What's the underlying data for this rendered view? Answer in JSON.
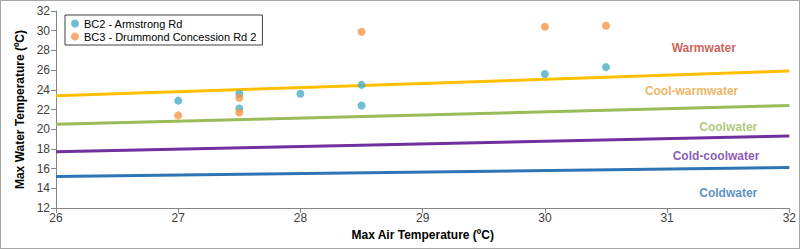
{
  "chart_data": {
    "type": "scatter",
    "x_label": "Max Air Temperature (ºC)",
    "y_label": "Max Water Temperature (ºC)",
    "xlim": [
      26,
      32
    ],
    "xticks": [
      26,
      27,
      28,
      29,
      30,
      31,
      32
    ],
    "ylim": [
      12,
      32
    ],
    "yticks": [
      12,
      14,
      16,
      18,
      20,
      22,
      24,
      26,
      28,
      30,
      32
    ],
    "grid": false,
    "legend": "upper left",
    "series": [
      {
        "name": "BC2 - Armstrong Rd",
        "type": "scatter",
        "marker": "circle",
        "color": "#4bacc6",
        "x": [
          27,
          27.5,
          27.5,
          28,
          28.5,
          28.5,
          30,
          30.5
        ],
        "values": [
          22.9,
          23.6,
          22.1,
          23.6,
          24.5,
          22.4,
          25.6,
          26.3
        ]
      },
      {
        "name": "BC3 - Drummond Concession Rd 2",
        "type": "scatter",
        "marker": "circle",
        "color": "#f79646",
        "x": [
          27,
          27.5,
          27.5,
          28.5,
          30,
          30.5
        ],
        "values": [
          21.4,
          23.2,
          21.7,
          29.9,
          30.4,
          30.5
        ]
      },
      {
        "type": "line",
        "line_style": "solid",
        "color": "#ffc000",
        "x": [
          26,
          32
        ],
        "values": [
          23.4,
          25.9
        ]
      },
      {
        "type": "line",
        "line_style": "solid",
        "color": "#9bbb59",
        "x": [
          26,
          32
        ],
        "values": [
          20.5,
          22.4
        ]
      },
      {
        "type": "line",
        "line_style": "solid",
        "color": "#7030a0",
        "x": [
          26,
          32
        ],
        "values": [
          17.7,
          19.3
        ]
      },
      {
        "type": "line",
        "line_style": "solid",
        "color": "#2e75b6",
        "x": [
          26,
          32
        ],
        "values": [
          15.2,
          16.1
        ]
      }
    ],
    "annotations": [
      {
        "text": "Warmwater",
        "x": 31.3,
        "y": 28.2,
        "color": "#c0392b"
      },
      {
        "text": "Cool-warmwater",
        "x": 31.2,
        "y": 23.9,
        "color": "#e8a23a"
      },
      {
        "text": "Coolwater",
        "x": 31.5,
        "y": 20.2,
        "color": "#9bbb59"
      },
      {
        "text": "Cold-coolwater",
        "x": 31.4,
        "y": 17.3,
        "color": "#7030a0"
      },
      {
        "text": "Coldwater",
        "x": 31.5,
        "y": 13.5,
        "color": "#2e75b6"
      }
    ]
  }
}
